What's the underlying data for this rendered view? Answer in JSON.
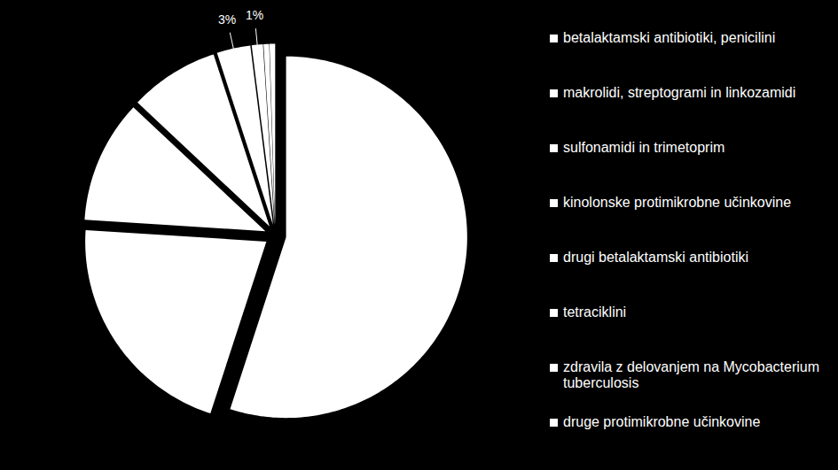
{
  "chart_data": {
    "type": "pie",
    "categories": [
      "betalaktamski antibiotiki, penicilini",
      "makrolidi, streptogrami in linkozamidi",
      "sulfonamidi in trimetoprim",
      "kinolonske protimikrobne učinkovine",
      "drugi betalaktamski antibiotiki",
      "tetraciklini",
      "zdravila z delovanjem na Mycobacterium tuberculosis",
      "druge protimikrobne učinkovine"
    ],
    "values": [
      55,
      21,
      11,
      8,
      3,
      1,
      0.5,
      0.5
    ],
    "value_labels": [
      null,
      null,
      null,
      null,
      "3%",
      "1%",
      null,
      null
    ],
    "colors": [
      "#ffffff",
      "#ffffff",
      "#ffffff",
      "#ffffff",
      "#ffffff",
      "#ffffff",
      "#ffffff",
      "#ffffff"
    ],
    "data_labels": true,
    "legend": "right"
  }
}
